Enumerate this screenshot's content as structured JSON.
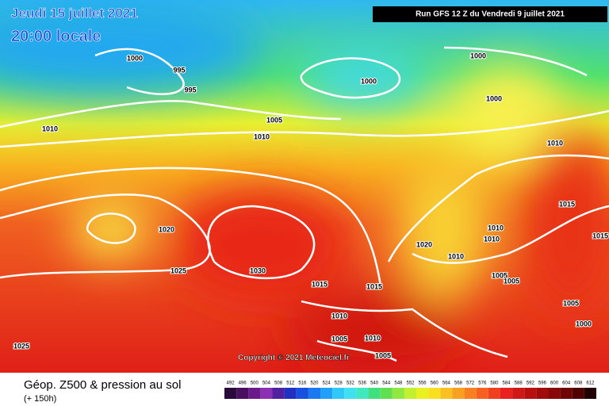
{
  "header": {
    "date": "Jeudi 15 juillet 2021",
    "time": "20:00 locale",
    "run": "Run GFS 12 Z du Vendredi 9 juillet 2021"
  },
  "copyright": "Copyright © 2021 Meteociel.fr",
  "legend": {
    "title": "Géop. Z500 & pression au sol",
    "lead": "(+ 150h)",
    "values": [
      492,
      496,
      500,
      504,
      508,
      512,
      516,
      520,
      524,
      528,
      532,
      536,
      540,
      544,
      548,
      552,
      556,
      560,
      564,
      568,
      572,
      576,
      580,
      584,
      588,
      592,
      596,
      600,
      604,
      608,
      612
    ],
    "colors": [
      "#2a0a3a",
      "#4a1060",
      "#6a1a8a",
      "#8a30b0",
      "#5020a0",
      "#2030c0",
      "#1850e0",
      "#1a78f0",
      "#20a0f8",
      "#30c8f8",
      "#40e0f0",
      "#40e8c0",
      "#40e080",
      "#60e050",
      "#90e840",
      "#c0f030",
      "#e8f020",
      "#f8e020",
      "#f8c020",
      "#f8a020",
      "#f88020",
      "#f86020",
      "#f04020",
      "#e82020",
      "#d01818",
      "#b81010",
      "#a00c0c",
      "#880808",
      "#700404",
      "#500000",
      "#200000"
    ]
  },
  "isobar_labels": [
    1000,
    995,
    995,
    1000,
    1000,
    1000,
    1005,
    1010,
    1010,
    1010,
    1015,
    1015,
    1020,
    1025,
    1030,
    1020,
    1010,
    1010,
    1010,
    1005,
    1005,
    1005,
    1000,
    1015,
    1015,
    1010,
    1005,
    1010,
    1005,
    1025
  ]
}
